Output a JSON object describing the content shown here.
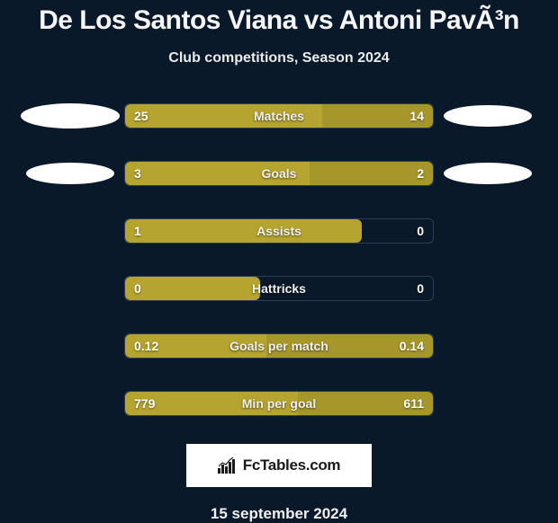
{
  "title": "De Los Santos Viana vs Antoni PavÃ³n",
  "subtitle": "Club competitions, Season 2024",
  "date": "15 september 2024",
  "logo_text": "FcTables.com",
  "colors": {
    "background": "#0a1929",
    "accent": "#b5a42f",
    "bar_border": "#2a3f55",
    "text": "#ffffff",
    "logo_bg": "#ffffff",
    "logo_text": "#1a1a1a"
  },
  "player_left": {
    "name": "De Los Santos Viana"
  },
  "player_right": {
    "name": "Antoni PavÃ³n"
  },
  "rows": [
    {
      "metric": "Matches",
      "left": "25",
      "right": "14",
      "fill_left_pct": 64,
      "fill_right_pct": 36,
      "full_fill": true,
      "show_left_ellipse": true,
      "show_right_ellipse": true,
      "ellipse_left_w": 110,
      "ellipse_left_h": 28,
      "ellipse_right_w": 98,
      "ellipse_right_h": 24
    },
    {
      "metric": "Goals",
      "left": "3",
      "right": "2",
      "fill_left_pct": 60,
      "fill_right_pct": 40,
      "full_fill": true,
      "show_left_ellipse": true,
      "show_right_ellipse": true,
      "ellipse_left_w": 98,
      "ellipse_left_h": 24,
      "ellipse_right_w": 98,
      "ellipse_right_h": 24
    },
    {
      "metric": "Assists",
      "left": "1",
      "right": "0",
      "fill_left_pct": 77,
      "fill_right_pct": 0,
      "full_fill": false
    },
    {
      "metric": "Hattricks",
      "left": "0",
      "right": "0",
      "fill_left_pct": 44,
      "fill_right_pct": 0,
      "full_fill": false
    },
    {
      "metric": "Goals per match",
      "left": "0.12",
      "right": "0.14",
      "fill_left_pct": 46,
      "fill_right_pct": 54,
      "full_fill": true
    },
    {
      "metric": "Min per goal",
      "left": "779",
      "right": "611",
      "fill_left_pct": 56,
      "fill_right_pct": 44,
      "full_fill": true
    }
  ]
}
